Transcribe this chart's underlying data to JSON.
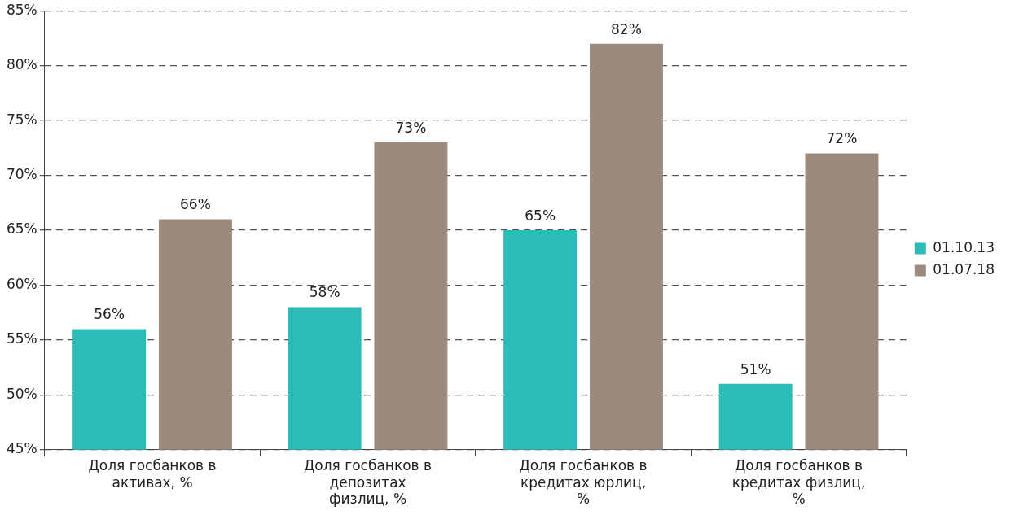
{
  "chart_data": {
    "type": "bar",
    "categories": [
      "Доля госбанков в активах, %",
      "Доля госбанков в депозитах физлиц, %",
      "Доля госбанков в кредитах юрлиц, %",
      "Доля госбанков в кредитах физлиц, %"
    ],
    "series": [
      {
        "name": "01.10.13",
        "color": "#2bbcb8",
        "values": [
          56,
          58,
          65,
          51
        ],
        "value_labels": [
          "56%",
          "58%",
          "65%",
          "51%"
        ]
      },
      {
        "name": "01.07.18",
        "color": "#9b8b7e",
        "values": [
          66,
          73,
          82,
          72
        ],
        "value_labels": [
          "66%",
          "73%",
          "82%",
          "72%"
        ]
      }
    ],
    "ylim": [
      45,
      85
    ],
    "yticks": [
      {
        "value": 45,
        "label": "45%"
      },
      {
        "value": 50,
        "label": "50%"
      },
      {
        "value": 55,
        "label": "55%"
      },
      {
        "value": 60,
        "label": "60%"
      },
      {
        "value": 65,
        "label": "65%"
      },
      {
        "value": 70,
        "label": "70%"
      },
      {
        "value": 75,
        "label": "75%"
      },
      {
        "value": 80,
        "label": "80%"
      },
      {
        "value": 85,
        "label": "85%"
      }
    ],
    "grid": "y",
    "legend": "right"
  }
}
